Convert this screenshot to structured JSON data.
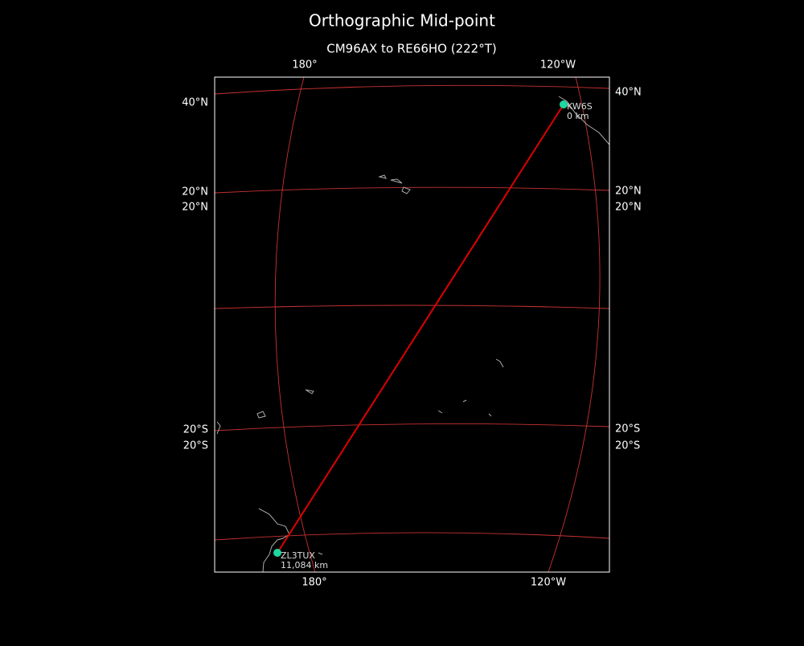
{
  "title": "Orthographic Mid-point",
  "subtitle": "CM96AX to RE66HO (222°T)",
  "graticule": {
    "top": [
      "180°",
      "120°W"
    ],
    "bottom": [
      "180°",
      "120°W"
    ],
    "left": [
      "40°N",
      "20°N",
      "20°N",
      "20°S",
      "20°S"
    ],
    "right": [
      "40°N",
      "20°N",
      "20°N",
      "20°S",
      "20°S"
    ]
  },
  "stations": [
    {
      "call": "KW6S",
      "distance": "0 km"
    },
    {
      "call": "ZL3TUX",
      "distance": "11,084 km"
    }
  ]
}
